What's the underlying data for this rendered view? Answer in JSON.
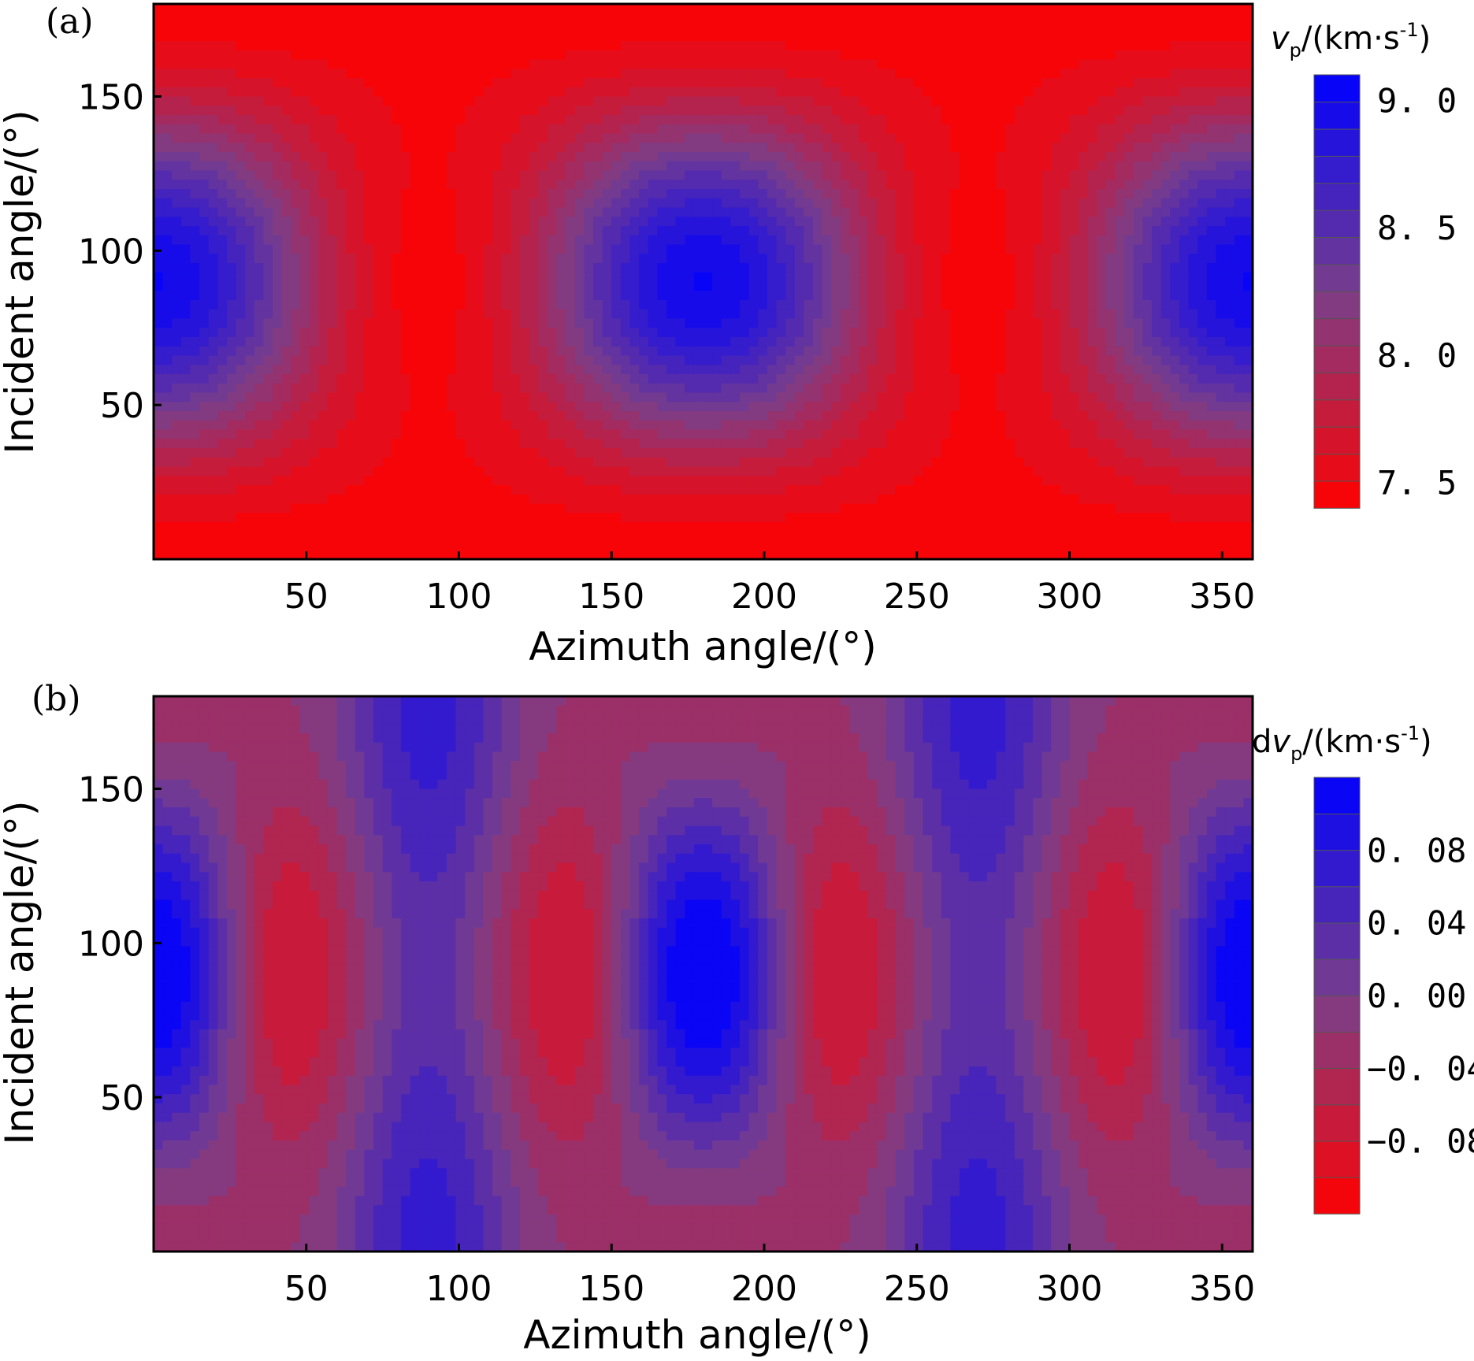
{
  "chart_data": [
    {
      "panel": "(a)",
      "type": "heatmap",
      "style": "filled contour map",
      "xlabel": "Azimuth angle/(°)",
      "ylabel": "Incident angle/(°)",
      "xlim": [
        0,
        360
      ],
      "ylim": [
        0,
        180
      ],
      "xticks": [
        50,
        100,
        150,
        200,
        250,
        300,
        350
      ],
      "yticks": [
        50,
        100,
        150
      ],
      "x_tick_labels": [
        "50",
        "100",
        "150",
        "200",
        "250",
        "300",
        "350"
      ],
      "y_tick_labels": [
        "50",
        "100",
        "150"
      ],
      "colorbar": {
        "title_var": "v",
        "title_sub": "p",
        "title_rest": "/(km·s",
        "title_sup": "-1",
        "title_end": ")",
        "range": [
          7.4,
          9.1
        ],
        "levels": 16,
        "tick_values": [
          7.5,
          8.0,
          8.5,
          9.0
        ],
        "tick_labels": [
          "7. 5",
          "8. 0",
          "8. 5",
          "9. 0"
        ],
        "low_color": "#ff0000",
        "mid_color": "#7a3f8a",
        "high_color": "#0000ff"
      },
      "features": {
        "maxima_value": 9.0,
        "maxima_at": [
          [
            0,
            90
          ],
          [
            180,
            90
          ],
          [
            360,
            90
          ]
        ],
        "minima_value": 7.5,
        "minima_at": [
          [
            90,
            90
          ],
          [
            270,
            90
          ],
          [
            0,
            0
          ],
          [
            0,
            180
          ],
          [
            180,
            0
          ],
          [
            180,
            180
          ],
          [
            360,
            0
          ],
          [
            360,
            180
          ]
        ]
      }
    },
    {
      "panel": "(b)",
      "type": "heatmap",
      "style": "filled contour map",
      "xlabel": "Azimuth angle/(°)",
      "ylabel": "Incident angle/(°)",
      "xlim": [
        0,
        360
      ],
      "ylim": [
        0,
        180
      ],
      "xticks": [
        50,
        100,
        150,
        200,
        250,
        300,
        350
      ],
      "yticks": [
        50,
        100,
        150
      ],
      "x_tick_labels": [
        "50",
        "100",
        "150",
        "200",
        "250",
        "300",
        "350"
      ],
      "y_tick_labels": [
        "50",
        "100",
        "150"
      ],
      "colorbar": {
        "title_pre": "d",
        "title_var": "v",
        "title_sub": "p",
        "title_rest": "/(km·s",
        "title_sup": "-1",
        "title_end": ")",
        "range": [
          -0.12,
          0.12
        ],
        "levels": 12,
        "tick_values": [
          0.08,
          0.04,
          0.0,
          -0.04,
          -0.08
        ],
        "tick_labels": [
          "0. 08",
          "0. 04",
          "0. 00",
          "−0. 04",
          "−0. 08"
        ],
        "low_color": "#ff0000",
        "mid_color": "#7a3f8a",
        "high_color": "#0000ff"
      },
      "features": {
        "maxima_value": 0.1,
        "maxima_at": [
          [
            0,
            90
          ],
          [
            180,
            90
          ],
          [
            360,
            90
          ],
          [
            90,
            55
          ],
          [
            90,
            125
          ],
          [
            270,
            55
          ],
          [
            270,
            125
          ]
        ],
        "minima_value": -0.1,
        "minima_at": [
          [
            52,
            90
          ],
          [
            128,
            90
          ],
          [
            232,
            90
          ],
          [
            308,
            90
          ],
          [
            90,
            0
          ],
          [
            90,
            180
          ],
          [
            270,
            0
          ],
          [
            270,
            180
          ]
        ]
      }
    }
  ]
}
